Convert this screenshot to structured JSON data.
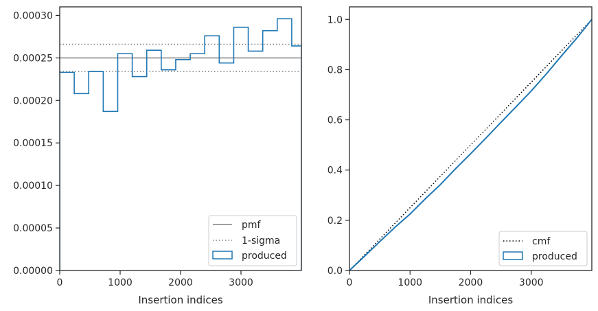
{
  "colors": {
    "hist": "#1f77b4",
    "pmf": "#808080",
    "sigma": "#808080",
    "cmf": "#000000",
    "axis": "#262626"
  },
  "chart_data": [
    {
      "type": "histogram-step",
      "xlabel": "Insertion indices",
      "ylabel": "",
      "xlim": [
        0,
        4000
      ],
      "ylim": [
        0,
        0.00031
      ],
      "x_ticks": [
        0,
        1000,
        2000,
        3000
      ],
      "x_tick_labels": [
        "0",
        "1000",
        "2000",
        "3000"
      ],
      "y_ticks": [
        0,
        5e-05,
        0.0001,
        0.00015,
        0.0002,
        0.00025,
        0.0003
      ],
      "y_tick_labels": [
        "0.00000",
        "0.00005",
        "0.00010",
        "0.00015",
        "0.00020",
        "0.00025",
        "0.00030"
      ],
      "bin_edges": [
        0,
        240,
        480,
        720,
        960,
        1200,
        1440,
        1680,
        1920,
        2160,
        2400,
        2640,
        2880,
        3120,
        3360,
        3600,
        3840,
        4000
      ],
      "values": [
        0.000233,
        0.000208,
        0.000234,
        0.000187,
        0.000255,
        0.000228,
        0.000259,
        0.000236,
        0.000248,
        0.000255,
        0.000276,
        0.000244,
        0.000286,
        0.000258,
        0.000282,
        0.000296,
        0.000264
      ],
      "pmf": 0.00025,
      "sigma_band": [
        0.000234,
        0.000266
      ],
      "legend": {
        "placement": "lower right",
        "entries": [
          "pmf",
          "1-sigma",
          "produced"
        ]
      }
    },
    {
      "type": "line",
      "xlabel": "Insertion indices",
      "ylabel": "",
      "xlim": [
        0,
        4000
      ],
      "ylim": [
        0,
        1.05
      ],
      "x_ticks": [
        0,
        1000,
        2000,
        3000
      ],
      "x_tick_labels": [
        "0",
        "1000",
        "2000",
        "3000"
      ],
      "y_ticks": [
        0,
        0.2,
        0.4,
        0.6,
        0.8,
        1.0
      ],
      "y_tick_labels": [
        "0.0",
        "0.2",
        "0.4",
        "0.6",
        "0.8",
        "1.0"
      ],
      "series": [
        {
          "name": "cmf",
          "x": [
            0,
            4000
          ],
          "y": [
            0,
            1.0
          ]
        },
        {
          "name": "produced",
          "x": [
            0,
            250,
            500,
            750,
            1000,
            1250,
            1500,
            1750,
            2000,
            2250,
            2500,
            2750,
            3000,
            3250,
            3500,
            3750,
            4000
          ],
          "y": [
            0,
            0.057,
            0.115,
            0.172,
            0.225,
            0.285,
            0.342,
            0.405,
            0.465,
            0.527,
            0.59,
            0.652,
            0.715,
            0.783,
            0.855,
            0.925,
            1.0
          ]
        }
      ],
      "legend": {
        "placement": "lower right",
        "entries": [
          "cmf",
          "produced"
        ]
      }
    }
  ]
}
